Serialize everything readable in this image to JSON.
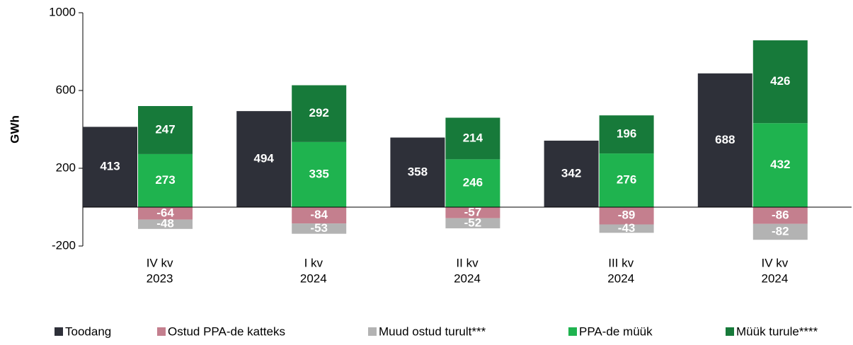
{
  "chart_data": {
    "type": "stacked_grouped_bar",
    "ylabel": "GWh",
    "categories": [
      [
        "IV kv",
        "2023"
      ],
      [
        "I kv",
        "2024"
      ],
      [
        "II kv",
        "2024"
      ],
      [
        "III kv",
        "2024"
      ],
      [
        "IV kv",
        "2024"
      ]
    ],
    "series": [
      {
        "name": "Toodang",
        "color": "#2e3039",
        "stack": "a",
        "values": [
          413,
          494,
          358,
          342,
          688
        ]
      },
      {
        "name": "Ostud PPA-de katteks",
        "color": "#c47f8e",
        "stack": "b",
        "values": [
          -64,
          -84,
          -57,
          -89,
          -86
        ]
      },
      {
        "name": "Muud ostud turult***",
        "color": "#b3b3b3",
        "stack": "b",
        "values": [
          -48,
          -53,
          -52,
          -43,
          -82
        ]
      },
      {
        "name": "PPA-de müük",
        "color": "#1fb34f",
        "stack": "b",
        "values": [
          273,
          335,
          246,
          276,
          432
        ]
      },
      {
        "name": "Müük turule****",
        "color": "#177a3a",
        "stack": "b",
        "values": [
          247,
          292,
          214,
          196,
          426
        ]
      }
    ],
    "ylim": [
      -200,
      1000
    ],
    "yticks": [
      -200,
      200,
      600,
      1000
    ]
  }
}
